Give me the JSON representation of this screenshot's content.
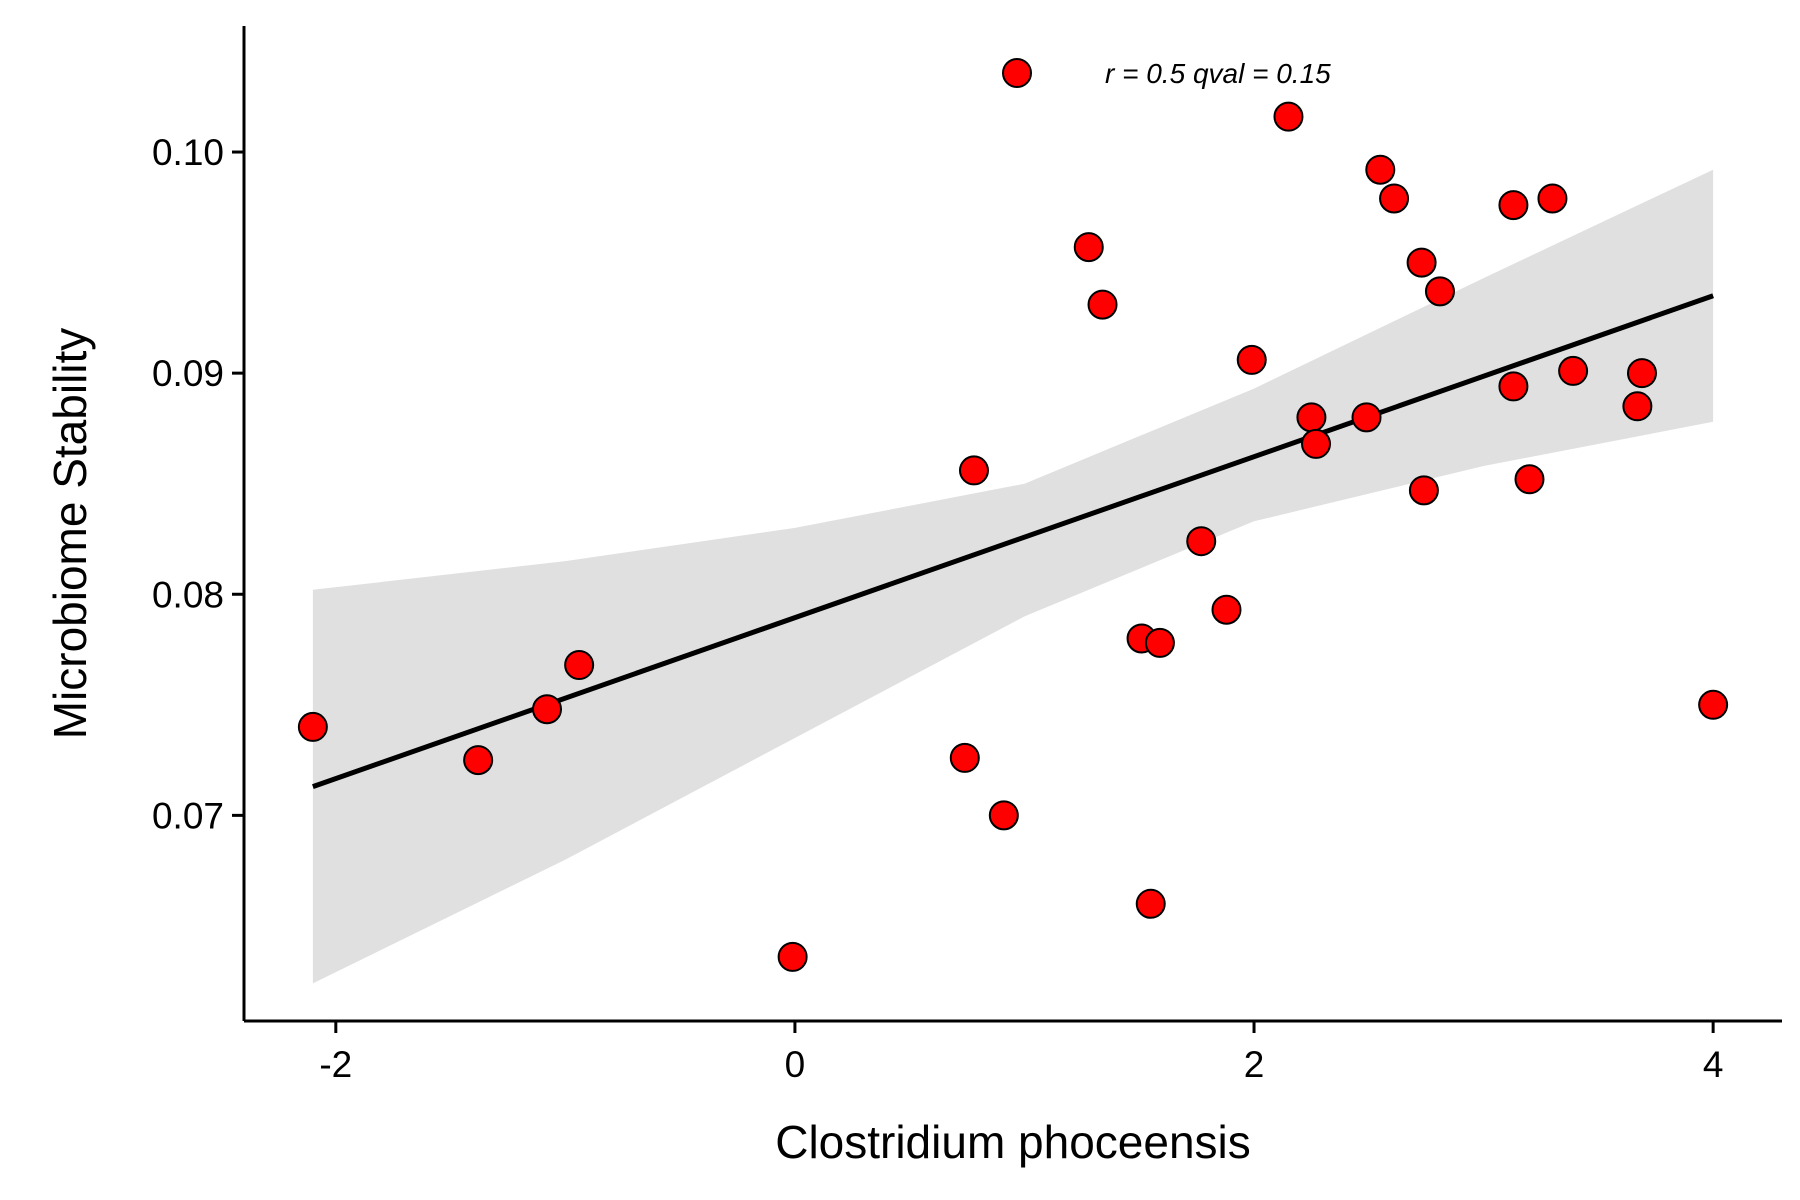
{
  "chart_data": {
    "type": "scatter",
    "xlabel": "Clostridium phoceensis",
    "ylabel": "Microbiome Stability",
    "xlim": [
      -2.4,
      4.3
    ],
    "ylim": [
      0.0607,
      0.1057
    ],
    "x_ticks": [
      -2,
      0,
      2,
      4
    ],
    "x_tick_labels": [
      "-2",
      "0",
      "2",
      "4"
    ],
    "y_ticks": [
      0.07,
      0.08,
      0.09,
      0.1
    ],
    "y_tick_labels": [
      "0.07",
      "0.08",
      "0.09",
      "0.10"
    ],
    "grid": false,
    "legend_position": "top-center",
    "annotation": "r = 0.5 qval = 0.15",
    "point_color": "#ff0000",
    "point_edge_color": "#000000",
    "line_color": "#000000",
    "band_color": "#e0e0e0",
    "points": [
      {
        "x": -2.1,
        "y": 0.074
      },
      {
        "x": -1.38,
        "y": 0.0725
      },
      {
        "x": -1.08,
        "y": 0.0748
      },
      {
        "x": -0.94,
        "y": 0.0768
      },
      {
        "x": -0.01,
        "y": 0.0636
      },
      {
        "x": 0.74,
        "y": 0.0726
      },
      {
        "x": 0.78,
        "y": 0.0856
      },
      {
        "x": 0.91,
        "y": 0.07
      },
      {
        "x": 1.28,
        "y": 0.0957
      },
      {
        "x": 1.34,
        "y": 0.0931
      },
      {
        "x": 1.51,
        "y": 0.078
      },
      {
        "x": 1.55,
        "y": 0.066
      },
      {
        "x": 1.59,
        "y": 0.0778
      },
      {
        "x": 1.77,
        "y": 0.0824
      },
      {
        "x": 1.88,
        "y": 0.0793
      },
      {
        "x": 1.99,
        "y": 0.0906
      },
      {
        "x": 2.15,
        "y": 0.1016
      },
      {
        "x": 2.25,
        "y": 0.088
      },
      {
        "x": 2.27,
        "y": 0.0868
      },
      {
        "x": 2.49,
        "y": 0.088
      },
      {
        "x": 2.55,
        "y": 0.0992
      },
      {
        "x": 2.61,
        "y": 0.0979
      },
      {
        "x": 2.73,
        "y": 0.095
      },
      {
        "x": 2.74,
        "y": 0.0847
      },
      {
        "x": 2.81,
        "y": 0.0937
      },
      {
        "x": 3.13,
        "y": 0.0976
      },
      {
        "x": 3.13,
        "y": 0.0894
      },
      {
        "x": 3.2,
        "y": 0.0852
      },
      {
        "x": 3.3,
        "y": 0.0979
      },
      {
        "x": 3.39,
        "y": 0.0901
      },
      {
        "x": 3.67,
        "y": 0.0885
      },
      {
        "x": 3.69,
        "y": 0.09
      },
      {
        "x": 4.0,
        "y": 0.075
      }
    ],
    "regression": {
      "x": [
        -2.1,
        4.0
      ],
      "y": [
        0.0713,
        0.0935
      ]
    },
    "confidence_band": {
      "x": [
        -2.1,
        -1.0,
        0.0,
        1.0,
        2.0,
        3.0,
        4.0
      ],
      "upper": [
        0.0802,
        0.0815,
        0.083,
        0.085,
        0.0893,
        0.0943,
        0.0992
      ],
      "lower": [
        0.0624,
        0.068,
        0.0735,
        0.079,
        0.0833,
        0.0858,
        0.0878
      ]
    }
  }
}
